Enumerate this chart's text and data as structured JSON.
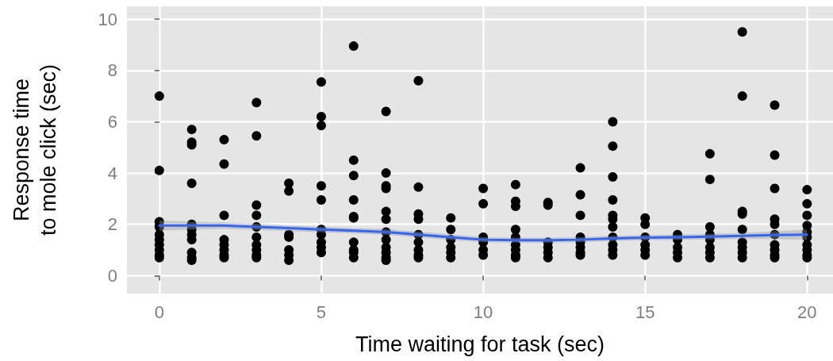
{
  "chart_data": {
    "type": "scatter",
    "xlabel": "Time waiting for task (sec)",
    "ylabel": "Response time\nto mole click (sec)",
    "xlim": [
      -1,
      20.8
    ],
    "xticks": [
      0,
      5,
      10,
      15,
      20
    ],
    "ylim": [
      -0.7,
      10.5
    ],
    "yticks": [
      0,
      2,
      4,
      6,
      8,
      10
    ],
    "grid": true,
    "series": [
      {
        "marker": "circle",
        "color": "#000000",
        "x": [
          0,
          0,
          0,
          0,
          0,
          0,
          0,
          0,
          0,
          0,
          1,
          1,
          1,
          1,
          1,
          1,
          1,
          1,
          1,
          1,
          1,
          2,
          2,
          2,
          2,
          2,
          2,
          2,
          2,
          3,
          3,
          3,
          3,
          3,
          3,
          3,
          3,
          3,
          3,
          4,
          4,
          4,
          4,
          4,
          4,
          4,
          5,
          5,
          5,
          5,
          5,
          5,
          5,
          5,
          5,
          5,
          6,
          6,
          6,
          6,
          6,
          6,
          6,
          6,
          6,
          6,
          7,
          7,
          7,
          7,
          7,
          7,
          7,
          7,
          7,
          7,
          7,
          7,
          8,
          8,
          8,
          8,
          8,
          8,
          8,
          8,
          8,
          9,
          9,
          9,
          9,
          9,
          9,
          10,
          10,
          10,
          10,
          10,
          10,
          11,
          11,
          11,
          11,
          11,
          11,
          11,
          11,
          11,
          12,
          12,
          12,
          12,
          12,
          12,
          13,
          13,
          13,
          13,
          13,
          13,
          13,
          13,
          14,
          14,
          14,
          14,
          14,
          14,
          14,
          14,
          14,
          14,
          14,
          15,
          15,
          15,
          15,
          15,
          15,
          16,
          16,
          16,
          16,
          16,
          17,
          17,
          17,
          17,
          17,
          17,
          17,
          17,
          18,
          18,
          18,
          18,
          18,
          18,
          18,
          18,
          18,
          19,
          19,
          19,
          19,
          19,
          19,
          19,
          19,
          19,
          19,
          20,
          20,
          20,
          20,
          20,
          20,
          20,
          20,
          20,
          20
        ],
        "values": [
          7.0,
          4.1,
          2.1,
          1.9,
          1.6,
          1.4,
          1.2,
          1.0,
          0.8,
          0.7,
          5.7,
          5.2,
          5.1,
          3.6,
          2.0,
          1.8,
          1.6,
          1.4,
          0.9,
          0.7,
          0.6,
          5.3,
          4.35,
          2.35,
          1.4,
          1.2,
          1.0,
          0.8,
          0.7,
          6.75,
          5.45,
          2.75,
          2.35,
          1.9,
          1.5,
          1.2,
          1.0,
          0.8,
          0.7,
          3.6,
          3.3,
          1.6,
          1.5,
          1.0,
          0.8,
          0.6,
          7.55,
          6.2,
          5.85,
          3.5,
          2.95,
          1.8,
          1.6,
          1.3,
          1.1,
          0.9,
          8.95,
          4.5,
          3.9,
          2.95,
          2.3,
          2.25,
          1.3,
          1.0,
          0.9,
          0.7,
          6.4,
          4.0,
          3.5,
          3.4,
          2.5,
          2.2,
          1.7,
          1.4,
          1.1,
          0.9,
          0.7,
          0.6,
          7.6,
          3.45,
          2.4,
          2.2,
          1.6,
          1.3,
          1.0,
          0.8,
          0.7,
          2.25,
          1.8,
          1.4,
          1.1,
          0.9,
          0.7,
          3.4,
          2.8,
          1.5,
          1.3,
          1.0,
          0.8,
          3.55,
          2.9,
          2.7,
          1.8,
          1.5,
          1.2,
          1.0,
          0.8,
          0.7,
          2.85,
          2.75,
          1.3,
          1.1,
          0.9,
          0.7,
          4.2,
          3.15,
          2.35,
          1.5,
          1.3,
          1.1,
          0.9,
          0.8,
          6.0,
          5.05,
          3.85,
          2.95,
          2.35,
          2.2,
          1.9,
          1.5,
          1.2,
          1.0,
          0.8,
          2.25,
          2.0,
          1.5,
          1.2,
          1.0,
          0.8,
          1.6,
          1.4,
          1.1,
          0.9,
          0.7,
          4.75,
          3.75,
          1.9,
          1.6,
          1.4,
          1.1,
          0.9,
          0.7,
          9.5,
          7.0,
          2.5,
          2.4,
          1.8,
          1.3,
          1.1,
          0.9,
          0.7,
          6.65,
          4.7,
          3.4,
          2.2,
          2.0,
          1.6,
          1.2,
          1.0,
          0.8,
          0.7,
          3.35,
          2.8,
          2.35,
          1.95,
          1.7,
          1.5,
          1.2,
          1.0,
          0.8,
          0.7
        ]
      },
      {
        "type": "line",
        "marker": "none",
        "color": "#3366ff",
        "x": [
          0,
          1,
          2,
          3,
          4,
          5,
          6,
          7,
          8,
          9,
          10,
          11,
          12,
          13,
          14,
          15,
          16,
          17,
          18,
          19,
          20
        ],
        "values": [
          1.95,
          1.95,
          1.95,
          1.9,
          1.85,
          1.8,
          1.75,
          1.7,
          1.6,
          1.5,
          1.4,
          1.38,
          1.38,
          1.4,
          1.45,
          1.48,
          1.5,
          1.52,
          1.55,
          1.58,
          1.6
        ],
        "lower": [
          1.75,
          1.8,
          1.82,
          1.78,
          1.74,
          1.69,
          1.64,
          1.59,
          1.49,
          1.39,
          1.3,
          1.28,
          1.28,
          1.3,
          1.35,
          1.38,
          1.4,
          1.41,
          1.43,
          1.43,
          1.4
        ],
        "upper": [
          2.15,
          2.1,
          2.08,
          2.02,
          1.96,
          1.91,
          1.86,
          1.81,
          1.71,
          1.61,
          1.5,
          1.48,
          1.48,
          1.5,
          1.55,
          1.58,
          1.6,
          1.63,
          1.67,
          1.73,
          1.8
        ]
      }
    ]
  }
}
